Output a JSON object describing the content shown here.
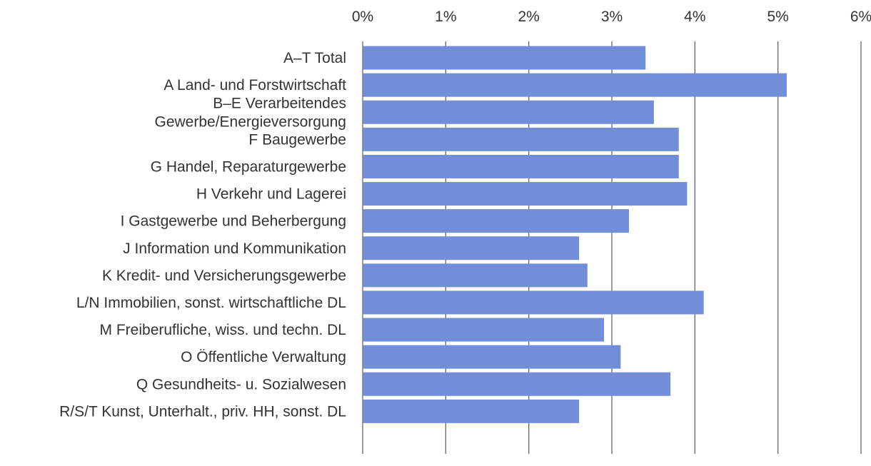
{
  "chart_data": {
    "type": "bar",
    "orientation": "horizontal",
    "title": "",
    "xlabel": "",
    "ylabel": "",
    "xlim": [
      0,
      6
    ],
    "xticks": [
      0,
      1,
      2,
      3,
      4,
      5,
      6
    ],
    "tick_suffix": "%",
    "grid": true,
    "legend": "none",
    "bar_color": "#728ed9",
    "grid_color": "#666666",
    "categories": [
      [
        "A–T Total"
      ],
      [
        "A Land- und Forstwirtschaft"
      ],
      [
        "B–E Verarbeitendes",
        "Gewerbe/Energieversorgung"
      ],
      [
        "F Baugewerbe"
      ],
      [
        "G Handel, Reparaturgewerbe"
      ],
      [
        "H Verkehr und Lagerei"
      ],
      [
        "I Gastgewerbe und Beherbergung"
      ],
      [
        "J Information und Kommunikation"
      ],
      [
        "K Kredit- und Versicherungsgewerbe"
      ],
      [
        "L/N Immobilien, sonst. wirtschaftliche DL"
      ],
      [
        "M Freiberufliche, wiss. und techn. DL"
      ],
      [
        "O Öffentliche Verwaltung"
      ],
      [
        "Q Gesundheits- u. Sozialwesen"
      ],
      [
        "R/S/T Kunst, Unterhalt., priv. HH, sonst. DL"
      ]
    ],
    "values": [
      3.4,
      5.1,
      3.5,
      3.8,
      3.8,
      3.9,
      3.2,
      2.6,
      2.7,
      4.1,
      2.9,
      3.1,
      3.7,
      2.6
    ]
  }
}
